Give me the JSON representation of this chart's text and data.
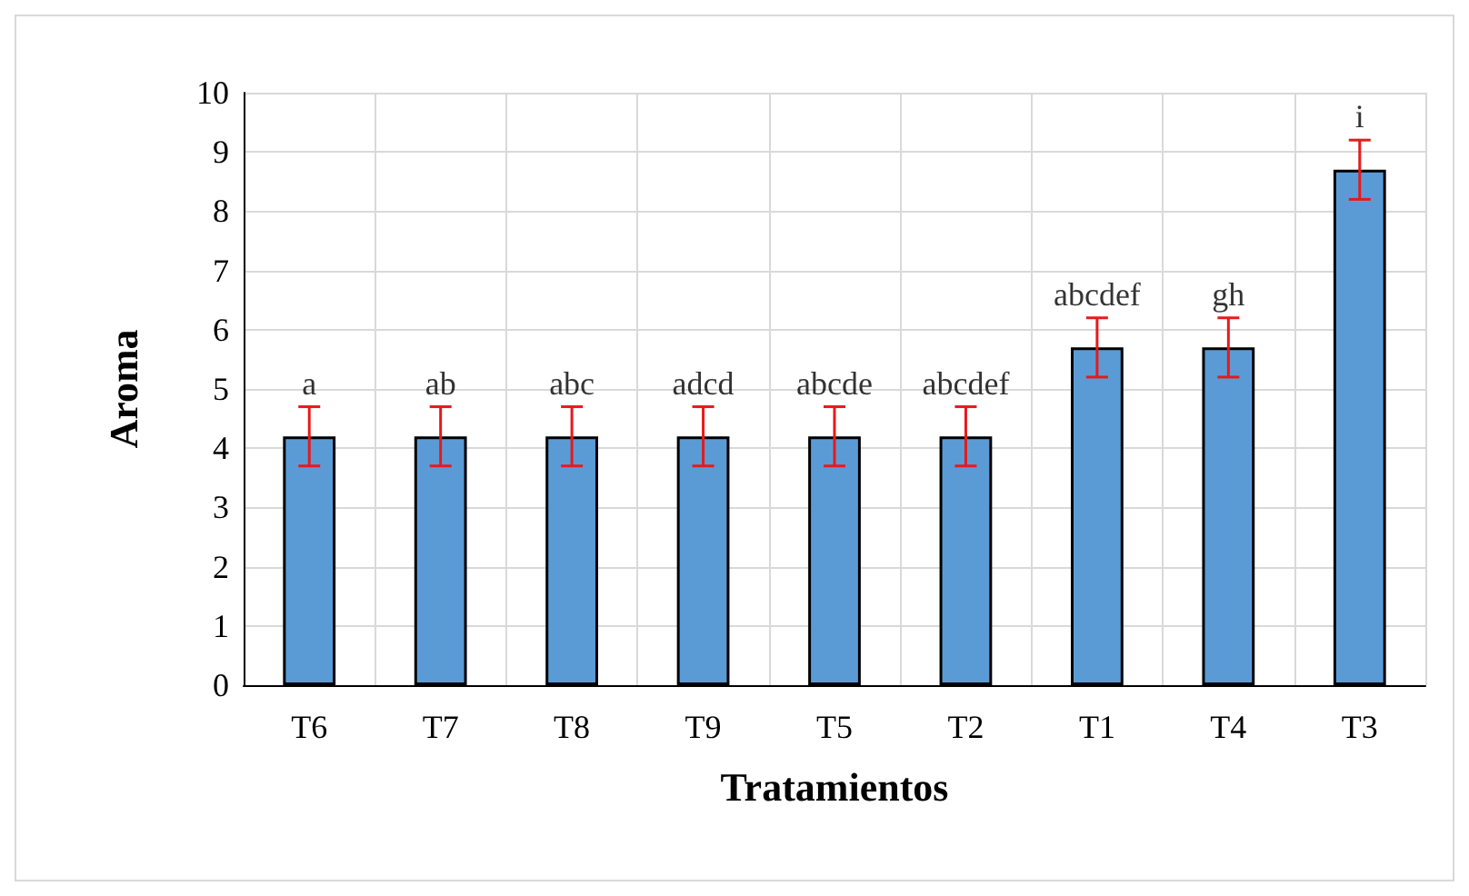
{
  "chart_data": {
    "type": "bar",
    "xlabel": "Tratamientos",
    "ylabel": "Aroma",
    "categories": [
      "T6",
      "T7",
      "T8",
      "T9",
      "T5",
      "T2",
      "T1",
      "T4",
      "T3"
    ],
    "values": [
      4.2,
      4.2,
      4.2,
      4.2,
      4.2,
      4.2,
      5.7,
      5.7,
      8.7
    ],
    "errors": [
      0.5,
      0.5,
      0.5,
      0.5,
      0.5,
      0.5,
      0.5,
      0.5,
      0.5
    ],
    "color": "#5b9bd5",
    "ylim": [
      0,
      10
    ],
    "yticks": [
      0,
      1,
      2,
      3,
      4,
      5,
      6,
      7,
      8,
      9,
      10
    ],
    "grid": true,
    "annotations": [
      {
        "text": "a",
        "x": "T6",
        "y": 4.7
      },
      {
        "text": "ab",
        "x": "T7",
        "y": 4.7
      },
      {
        "text": "abc",
        "x": "T8",
        "y": 4.7
      },
      {
        "text": "adcd",
        "x": "T9",
        "y": 4.7
      },
      {
        "text": "abcde",
        "x": "T5",
        "y": 4.7
      },
      {
        "text": "abcdef",
        "x": "T2",
        "y": 4.7
      },
      {
        "text": "abcdef",
        "x": "T1",
        "y": 6.2
      },
      {
        "text": "gh",
        "x": "T4",
        "y": 6.2
      },
      {
        "text": "i",
        "x": "T3",
        "y": 9.2
      }
    ]
  }
}
